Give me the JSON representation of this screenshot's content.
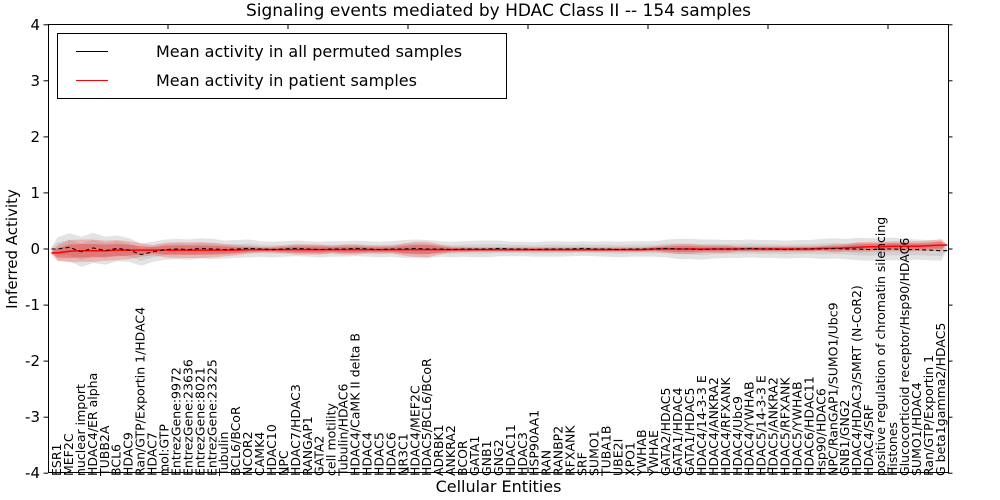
{
  "chart_data": {
    "type": "line",
    "title": "Signaling events mediated by HDAC Class II -- 154 samples",
    "xlabel": "Cellular Entities",
    "ylabel": "Inferred Activity",
    "ylim": [
      -4,
      4
    ],
    "yticks": [
      "4",
      "3",
      "2",
      "1",
      "0",
      "-1",
      "-2",
      "-3",
      "-4"
    ],
    "grid": false,
    "legend_position": "upper left",
    "categories": [
      "ESR1",
      "MEF2C",
      "nuclear import",
      "HDAC4/ER alpha",
      "TUBB2A",
      "BCL6",
      "HDAC9",
      "Ran/GTP/Exportin 1/HDAC4",
      "HDAC7",
      "mol:GTP",
      "EntrezGene:9972",
      "EntrezGene:23636",
      "EntrezGene:8021",
      "EntrezGene:23225",
      "Tubulin",
      "BCL6/BCoR",
      "NCOR2",
      "CAMK4",
      "HDAC10",
      "NPC",
      "HDAC7/HDAC3",
      "RANGAP1",
      "GATA2",
      "cell motility",
      "Tubulin/HDAC6",
      "HDAC4/CaMK II delta B",
      "HDAC4",
      "HDAC5",
      "HDAC6",
      "NR3C1",
      "HDAC4/MEF2C",
      "HDAC5/BCL6/BCoR",
      "ADRBK1",
      "ANKRA2",
      "BCOR",
      "GATA1",
      "GNB1",
      "GNG2",
      "HDAC11",
      "HDAC3",
      "HSP90AA1",
      "RAN",
      "RANBP2",
      "RFXANK",
      "SRF",
      "SUMO1",
      "TUBA1B",
      "UBE2I",
      "XPO1",
      "YWHAB",
      "YWHAE",
      "GATA2/HDAC5",
      "GATA1/HDAC4",
      "GATA1/HDAC5",
      "HDAC4/14-3-3 E",
      "HDAC4/ANKRA2",
      "HDAC4/RFXANK",
      "HDAC4/Ubc9",
      "HDAC4/YWHAB",
      "HDAC5/14-3-3 E",
      "HDAC5/ANKRA2",
      "HDAC5/RFXANK",
      "HDAC5/YWHAB",
      "HDAC6/HDAC11",
      "Hsp90/HDAC6",
      "NPC/RanGAP1/SUMO1/Ubc9",
      "GNB1/GNG2",
      "HDAC4/HDAC3/SMRT (N-CoR2)",
      "HDAC4/SRF",
      "positive regulation of chromatin silencing",
      "Histones",
      "Glucocorticoid receptor/Hsp90/HDAC6",
      "SUMO1/HDAC4",
      "Ran/GTP/Exportin 1",
      "G beta1gamma2/HDAC5"
    ],
    "series": [
      {
        "name": "Mean activity in all permuted samples",
        "color": "#000000",
        "values": [
          0.0,
          0.03,
          -0.05,
          0.02,
          -0.03,
          0.01,
          -0.02,
          -0.1,
          -0.05,
          -0.01,
          0.0,
          -0.01,
          0.01,
          0.0,
          -0.01,
          0.0,
          0.01,
          0.0,
          -0.01,
          0.0,
          0.01,
          0.0,
          -0.01,
          0.0,
          0.0,
          0.01,
          0.0,
          -0.01,
          0.0,
          0.0,
          0.01,
          0.0,
          0.0,
          -0.01,
          0.0,
          0.0,
          0.0,
          0.01,
          0.0,
          0.0,
          -0.01,
          0.0,
          0.0,
          0.0,
          0.01,
          0.0,
          0.0,
          -0.01,
          0.0,
          0.0,
          0.0,
          0.01,
          0.0,
          0.0,
          -0.01,
          0.0,
          0.0,
          0.0,
          0.01,
          0.0,
          0.0,
          -0.01,
          0.0,
          0.0,
          0.0,
          0.01,
          0.0,
          0.0,
          -0.01,
          0.0,
          0.0,
          -0.01,
          -0.01,
          -0.02,
          -0.03
        ],
        "band_halfwidth": [
          0.21,
          0.25,
          0.27,
          0.27,
          0.25,
          0.23,
          0.21,
          0.2,
          0.18,
          0.18,
          0.18,
          0.18,
          0.18,
          0.18,
          0.16,
          0.16,
          0.16,
          0.14,
          0.14,
          0.14,
          0.14,
          0.14,
          0.14,
          0.14,
          0.14,
          0.14,
          0.14,
          0.14,
          0.14,
          0.16,
          0.16,
          0.16,
          0.14,
          0.14,
          0.14,
          0.15,
          0.15,
          0.14,
          0.13,
          0.13,
          0.13,
          0.14,
          0.14,
          0.13,
          0.13,
          0.13,
          0.14,
          0.14,
          0.14,
          0.14,
          0.14,
          0.16,
          0.18,
          0.18,
          0.18,
          0.17,
          0.16,
          0.16,
          0.16,
          0.16,
          0.16,
          0.16,
          0.16,
          0.16,
          0.18,
          0.18,
          0.18,
          0.2,
          0.2,
          0.2,
          0.2,
          0.19,
          0.18,
          0.18,
          0.18
        ]
      },
      {
        "name": "Mean activity in patient samples",
        "color": "#ff0000",
        "values": [
          -0.07,
          -0.04,
          -0.03,
          -0.03,
          -0.03,
          -0.02,
          -0.02,
          -0.02,
          -0.02,
          -0.02,
          -0.02,
          -0.02,
          -0.02,
          -0.02,
          -0.02,
          -0.02,
          -0.01,
          -0.01,
          -0.01,
          -0.01,
          -0.01,
          -0.01,
          -0.01,
          -0.01,
          -0.01,
          -0.01,
          -0.01,
          -0.01,
          -0.01,
          -0.01,
          -0.01,
          -0.01,
          -0.01,
          -0.01,
          -0.01,
          -0.01,
          -0.01,
          -0.01,
          -0.01,
          -0.01,
          -0.01,
          -0.01,
          -0.01,
          -0.01,
          -0.01,
          -0.01,
          -0.01,
          -0.01,
          -0.01,
          -0.01,
          0.0,
          0.0,
          0.0,
          0.0,
          0.0,
          0.0,
          0.0,
          0.0,
          0.0,
          0.0,
          0.0,
          0.0,
          0.0,
          0.0,
          0.01,
          0.01,
          0.02,
          0.03,
          0.04,
          0.04,
          0.05,
          0.05,
          0.05,
          0.06,
          0.07
        ],
        "band_halfwidth": [
          0.14,
          0.2,
          0.2,
          0.2,
          0.18,
          0.18,
          0.16,
          0.12,
          0.09,
          0.13,
          0.14,
          0.14,
          0.14,
          0.13,
          0.11,
          0.09,
          0.07,
          0.05,
          0.05,
          0.07,
          0.09,
          0.09,
          0.09,
          0.07,
          0.09,
          0.09,
          0.07,
          0.07,
          0.07,
          0.11,
          0.14,
          0.14,
          0.09,
          0.05,
          0.05,
          0.04,
          0.04,
          0.04,
          0.04,
          0.04,
          0.04,
          0.04,
          0.04,
          0.04,
          0.04,
          0.04,
          0.04,
          0.04,
          0.04,
          0.04,
          0.05,
          0.07,
          0.09,
          0.09,
          0.07,
          0.07,
          0.07,
          0.05,
          0.05,
          0.05,
          0.05,
          0.05,
          0.05,
          0.05,
          0.05,
          0.07,
          0.07,
          0.09,
          0.09,
          0.09,
          0.09,
          0.09,
          0.09,
          0.09,
          0.11
        ]
      }
    ],
    "band_colors": {
      "permuted_outer": "rgba(0,0,0,0.11)",
      "permuted_inner": "rgba(0,0,0,0.08)",
      "patient_outer": "rgba(255,0,0,0.20)",
      "patient_inner": "rgba(235,25,25,0.33)"
    }
  }
}
